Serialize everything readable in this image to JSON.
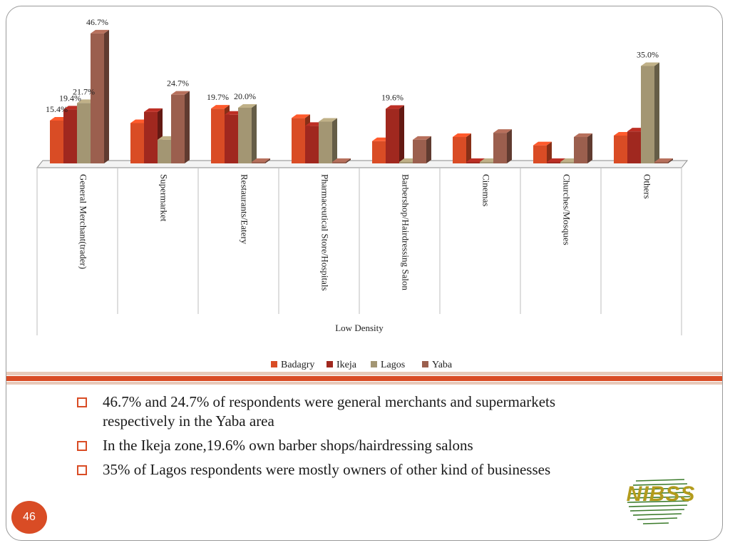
{
  "chart_data": {
    "type": "bar",
    "categories": [
      "General Merchant(trader)",
      "Supermarket",
      "Restaurants/Eatery",
      "Pharmaceutical Store/Hospitals",
      "Barbershop/Hairdressing Salon",
      "Cinemas",
      "Churches/Mosques",
      "Others"
    ],
    "group_label": "Low Density",
    "series": [
      {
        "name": "Badagry",
        "color": "#d94c25",
        "values": [
          15.4,
          14.5,
          19.7,
          16.3,
          8.0,
          9.5,
          6.5,
          10.0
        ]
      },
      {
        "name": "Ikeja",
        "color": "#a0281f",
        "values": [
          19.4,
          18.5,
          17.5,
          13.5,
          19.6,
          0.0,
          0.0,
          11.5
        ]
      },
      {
        "name": "Lagos",
        "color": "#a39673",
        "values": [
          21.7,
          8.5,
          20.0,
          15.0,
          0.0,
          0.0,
          0.0,
          35.0
        ]
      },
      {
        "name": "Yaba",
        "color": "#9b5f4e",
        "values": [
          46.7,
          24.7,
          0.0,
          0.0,
          8.5,
          11.0,
          9.5,
          0.5
        ]
      }
    ],
    "data_labels": [
      {
        "series": 0,
        "index": 0,
        "text": "15.4%"
      },
      {
        "series": 1,
        "index": 0,
        "text": "19.4%"
      },
      {
        "series": 2,
        "index": 0,
        "text": "21.7%"
      },
      {
        "series": 3,
        "index": 0,
        "text": "46.7%"
      },
      {
        "series": 3,
        "index": 1,
        "text": "24.7%"
      },
      {
        "series": 0,
        "index": 2,
        "text": "19.7%"
      },
      {
        "series": 2,
        "index": 2,
        "text": "20.0%"
      },
      {
        "series": 1,
        "index": 4,
        "text": "19.6%"
      },
      {
        "series": 2,
        "index": 7,
        "text": "35.0%"
      }
    ],
    "ylim": [
      0,
      50
    ],
    "grid": false,
    "legend_position": "bottom"
  },
  "bullets": [
    "46.7% and 24.7% of respondents were general merchants and supermarkets respectively in the Yaba area",
    "In the Ikeja zone,19.6% own barber shops/hairdressing salons",
    "35% of Lagos respondents were mostly owners of other kind of businesses"
  ],
  "page_number": "46",
  "logo_text": "NIBSS"
}
